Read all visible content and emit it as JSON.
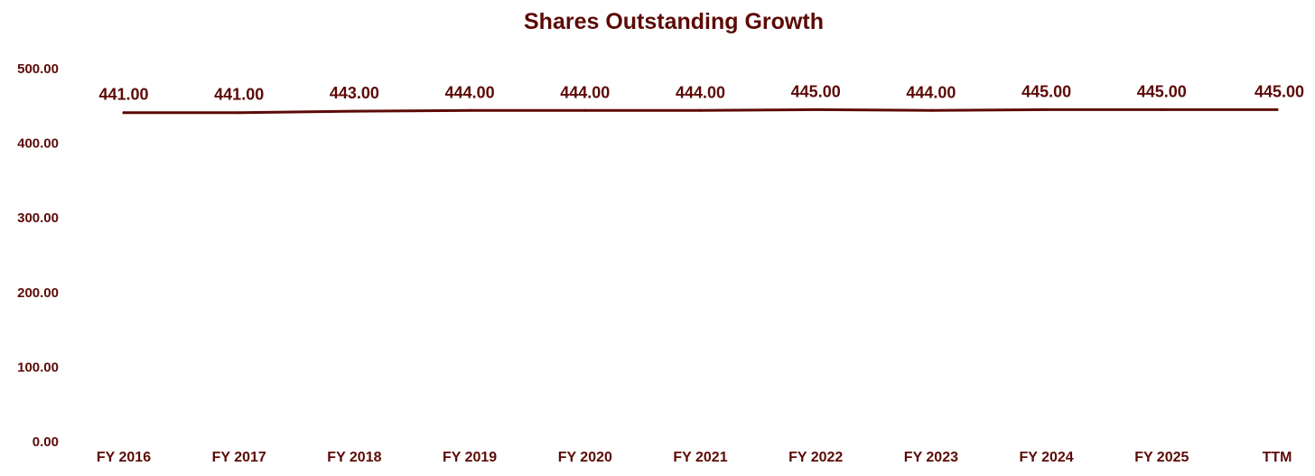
{
  "chart_data": {
    "type": "line",
    "title": "Shares Outstanding Growth",
    "categories": [
      "FY 2016",
      "FY 2017",
      "FY 2018",
      "FY 2019",
      "FY 2020",
      "FY 2021",
      "FY 2022",
      "FY 2023",
      "FY 2024",
      "FY 2025",
      "TTM"
    ],
    "series": [
      {
        "values": [
          441,
          441,
          443,
          444,
          444,
          444,
          445,
          444,
          445,
          445,
          445
        ],
        "labels": [
          "441.00",
          "441.00",
          "443.00",
          "444.00",
          "444.00",
          "444.00",
          "445.00",
          "444.00",
          "445.00",
          "445.00",
          "445.00"
        ],
        "color": "#5c0a06"
      }
    ],
    "yticks": [
      "0.00",
      "100.00",
      "200.00",
      "300.00",
      "400.00",
      "500.00"
    ],
    "ylim": [
      0,
      500
    ],
    "grid": false,
    "legend": "none",
    "text_color": "#5c0a06"
  }
}
